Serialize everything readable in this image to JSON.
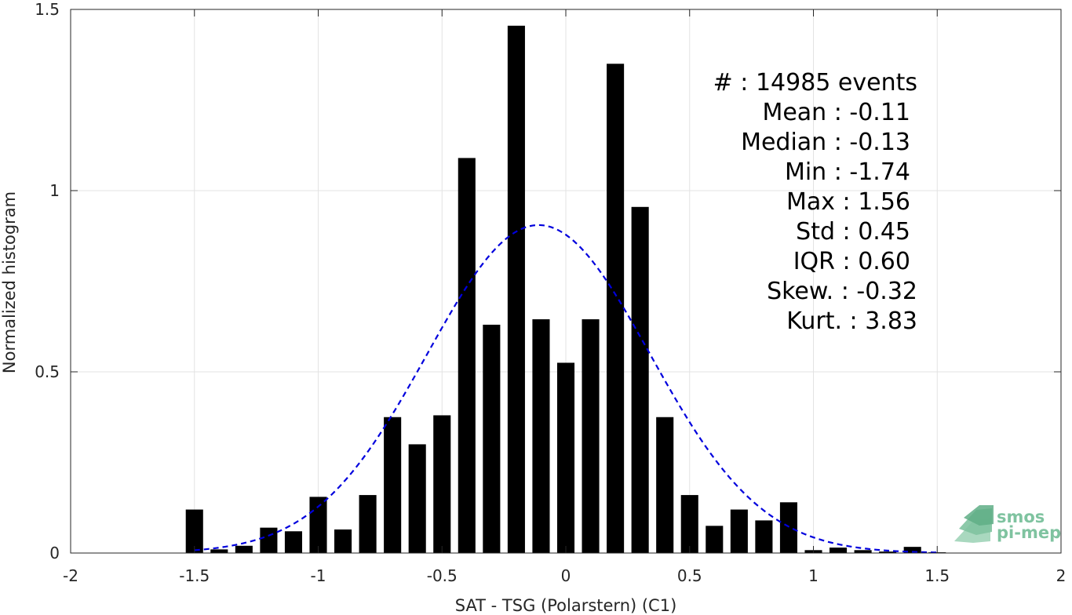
{
  "chart_data": {
    "type": "bar",
    "xlabel": "SAT - TSG (Polarstern) (C1)",
    "ylabel": "Normalized histogram",
    "xlim": [
      -2,
      2
    ],
    "ylim": [
      0,
      1.5
    ],
    "grid": true,
    "x_ticks": [
      "-2",
      "-1.5",
      "-1",
      "-0.5",
      "0",
      "0.5",
      "1",
      "1.5",
      "2"
    ],
    "y_ticks": [
      "0",
      "0.5",
      "1",
      "1.5"
    ],
    "bar_width": 0.07,
    "bar_color": "#000000",
    "bins": [
      {
        "x": -1.5,
        "value": 0.12
      },
      {
        "x": -1.4,
        "value": 0.01
      },
      {
        "x": -1.3,
        "value": 0.02
      },
      {
        "x": -1.2,
        "value": 0.07
      },
      {
        "x": -1.1,
        "value": 0.06
      },
      {
        "x": -1.0,
        "value": 0.155
      },
      {
        "x": -0.9,
        "value": 0.065
      },
      {
        "x": -0.8,
        "value": 0.16
      },
      {
        "x": -0.7,
        "value": 0.375
      },
      {
        "x": -0.6,
        "value": 0.3
      },
      {
        "x": -0.5,
        "value": 0.38
      },
      {
        "x": -0.4,
        "value": 1.09
      },
      {
        "x": -0.3,
        "value": 0.63
      },
      {
        "x": -0.2,
        "value": 1.455
      },
      {
        "x": -0.1,
        "value": 0.645
      },
      {
        "x": 0.0,
        "value": 0.525
      },
      {
        "x": 0.1,
        "value": 0.645
      },
      {
        "x": 0.2,
        "value": 1.35
      },
      {
        "x": 0.3,
        "value": 0.955
      },
      {
        "x": 0.4,
        "value": 0.375
      },
      {
        "x": 0.5,
        "value": 0.16
      },
      {
        "x": 0.6,
        "value": 0.075
      },
      {
        "x": 0.7,
        "value": 0.12
      },
      {
        "x": 0.8,
        "value": 0.09
      },
      {
        "x": 0.9,
        "value": 0.14
      },
      {
        "x": 1.0,
        "value": 0.008
      },
      {
        "x": 1.1,
        "value": 0.015
      },
      {
        "x": 1.2,
        "value": 0.008
      },
      {
        "x": 1.3,
        "value": 0.004
      },
      {
        "x": 1.4,
        "value": 0.017
      },
      {
        "x": 1.5,
        "value": 0.002
      }
    ],
    "fit_curve": {
      "type": "gaussian",
      "style": "dashed",
      "color": "#0000dd",
      "mean": -0.11,
      "std": 0.45,
      "peak": 0.905,
      "x_range": [
        -1.5,
        1.5
      ]
    },
    "stats": {
      "events": "#  : 14985 events",
      "mean": "Mean : -0.11",
      "median": "Median : -0.13",
      "min": "Min : -1.74",
      "max": "Max : 1.56",
      "std": "Std : 0.45",
      "iqr": "IQR : 0.60",
      "skew": "Skew. : -0.32",
      "kurt": "Kurt. : 3.83"
    }
  },
  "logo": {
    "line1": "smos",
    "line2": "pi-mep",
    "color": "#7fc3a0"
  }
}
